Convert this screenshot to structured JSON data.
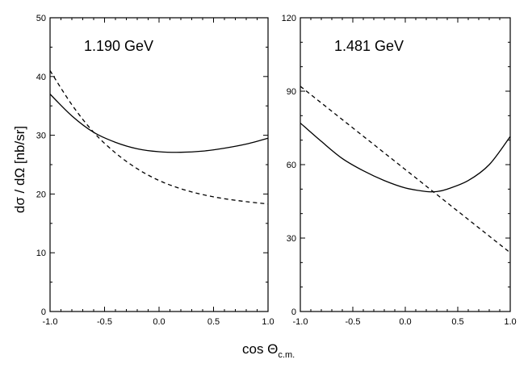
{
  "chart_data": [
    {
      "type": "line",
      "title": "1.190 GeV",
      "xlabel": "cos Θc.m.",
      "ylabel": "dσ / dΩ [nb/sr]",
      "xlim": [
        -1.0,
        1.0
      ],
      "ylim": [
        0,
        50
      ],
      "xticks": [
        "-1.0",
        "-0.5",
        "0.0",
        "0.5",
        "1.0"
      ],
      "yticks": [
        "0",
        "10",
        "20",
        "30",
        "40",
        "50"
      ],
      "series": [
        {
          "name": "solid",
          "style": "solid",
          "x": [
            -1.0,
            -0.8,
            -0.6,
            -0.4,
            -0.2,
            0.0,
            0.2,
            0.4,
            0.6,
            0.8,
            1.0
          ],
          "y": [
            37.0,
            33.3,
            30.5,
            28.8,
            27.7,
            27.2,
            27.1,
            27.3,
            27.8,
            28.5,
            29.5
          ]
        },
        {
          "name": "dashed",
          "style": "dashed",
          "x": [
            -1.0,
            -0.8,
            -0.6,
            -0.4,
            -0.2,
            0.0,
            0.2,
            0.4,
            0.6,
            0.8,
            1.0
          ],
          "y": [
            41.0,
            35.2,
            30.5,
            27.0,
            24.3,
            22.3,
            20.9,
            19.9,
            19.2,
            18.7,
            18.3
          ]
        }
      ]
    },
    {
      "type": "line",
      "title": "1.481 GeV",
      "xlabel": "cos Θc.m.",
      "ylabel": "dσ / dΩ [nb/sr]",
      "xlim": [
        -1.0,
        1.0
      ],
      "ylim": [
        0,
        120
      ],
      "xticks": [
        "-1.0",
        "-0.5",
        "0.0",
        "0.5",
        "1.0"
      ],
      "yticks": [
        "0",
        "30",
        "60",
        "90",
        "120"
      ],
      "series": [
        {
          "name": "solid",
          "style": "solid",
          "x": [
            -1.0,
            -0.8,
            -0.6,
            -0.4,
            -0.2,
            0.0,
            0.2,
            0.3,
            0.4,
            0.6,
            0.8,
            1.0
          ],
          "y": [
            77,
            69.5,
            62.5,
            57.5,
            53.5,
            50.5,
            49.0,
            49.0,
            50.0,
            53.5,
            60.0,
            71.5
          ]
        },
        {
          "name": "dashed",
          "style": "dashed",
          "x": [
            -1.0,
            1.0
          ],
          "y": [
            92,
            24
          ]
        }
      ]
    }
  ],
  "axis": {
    "xlabel_main": "cos Θ",
    "xlabel_sub": "c.m.",
    "ylabel": "dσ / dΩ [nb/sr]"
  }
}
